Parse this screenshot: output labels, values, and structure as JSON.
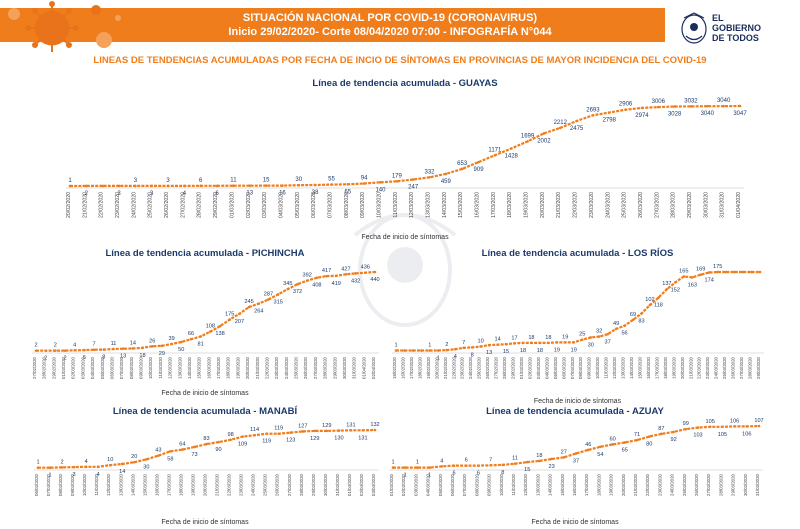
{
  "header": {
    "line1": "SITUACIÓN NACIONAL POR  COVID-19 (CORONAVIRUS)",
    "line2": "Inicio 29/02/2020- Corte 08/04/2020 07:00  - INFOGRAFÍA N°044",
    "logo_line1": "EL",
    "logo_line2": "GOBIERNO",
    "logo_line3": "DE TODOS"
  },
  "subtitle": "LINEAS DE TENDENCIAS ACUMULADAS POR FECHA DE INCIO DE SÍNTOMAS EN PROVINCIAS DE MAYOR INCIDENCIA DEL COVID-19",
  "colors": {
    "line": "#f07d1c",
    "label": "#1b3a6b",
    "accent": "#f07d1c"
  },
  "chart_data": [
    {
      "type": "line",
      "title": "Línea de tendencia acumulada - GUAYAS",
      "xlabel": "Fecha de inicio de síntomas",
      "ylabel": "",
      "x": [
        "20/02/2020",
        "21/02/2020",
        "22/02/2020",
        "23/02/2020",
        "24/02/2020",
        "25/02/2020",
        "26/02/2020",
        "27/02/2020",
        "28/02/2020",
        "29/02/2020",
        "01/03/2020",
        "02/03/2020",
        "03/03/2020",
        "04/03/2020",
        "05/03/2020",
        "06/03/2020",
        "07/03/2020",
        "08/03/2020",
        "09/03/2020",
        "10/03/2020",
        "11/03/2020",
        "12/03/2020",
        "13/03/2020",
        "14/03/2020",
        "15/03/2020",
        "16/03/2020",
        "17/03/2020",
        "18/03/2020",
        "19/03/2020",
        "20/03/2020",
        "21/03/2020",
        "22/03/2020",
        "23/03/2020",
        "24/03/2020",
        "25/03/2020",
        "26/03/2020",
        "27/03/2020",
        "28/03/2020",
        "29/03/2020",
        "30/03/2020",
        "31/03/2020",
        "01/04/2020"
      ],
      "values": [
        1,
        2,
        2,
        3,
        3,
        3,
        3,
        4,
        6,
        6,
        11,
        13,
        15,
        16,
        30,
        38,
        55,
        65,
        94,
        140,
        179,
        247,
        332,
        459,
        653,
        909,
        1171,
        1428,
        1699,
        2002,
        2212,
        2475,
        2693,
        2798,
        2906,
        2974,
        3006,
        3028,
        3032,
        3040,
        3040,
        3047
      ],
      "labels": [
        "1",
        "2",
        "",
        "3",
        "3",
        "3",
        "3",
        "4",
        "6",
        "6",
        "11",
        "13",
        "15",
        "16",
        "30",
        "38",
        "55",
        "65",
        "94",
        "140",
        "179",
        "247",
        "332",
        "459",
        "653",
        "909",
        "1171",
        "1428",
        "1699",
        "2002",
        "2212",
        "2475",
        "2693",
        "2798",
        "2906",
        "2974",
        "3006",
        "3028",
        "3032",
        "3040",
        "3040",
        "3047"
      ],
      "ylim": [
        0,
        3047
      ]
    },
    {
      "type": "line",
      "title": "Línea de tendencia acumulada - PICHINCHA",
      "xlabel": "Fecha de inicio de síntomas",
      "ylabel": "",
      "x": [
        "27/02/2020",
        "28/02/2020",
        "29/02/2020",
        "01/03/2020",
        "02/03/2020",
        "03/03/2020",
        "04/03/2020",
        "05/03/2020",
        "06/03/2020",
        "07/03/2020",
        "08/03/2020",
        "09/03/2020",
        "10/03/2020",
        "11/03/2020",
        "12/03/2020",
        "13/03/2020",
        "14/03/2020",
        "15/03/2020",
        "16/03/2020",
        "17/03/2020",
        "18/03/2020",
        "19/03/2020",
        "20/03/2020",
        "21/03/2020",
        "22/03/2020",
        "23/03/2020",
        "24/03/2020",
        "25/03/2020",
        "26/03/2020",
        "27/03/2020",
        "28/03/2020",
        "29/03/2020",
        "30/03/2020",
        "31/03/2020",
        "01/04/2020",
        "02/04/2020"
      ],
      "values": [
        2,
        2,
        2,
        2,
        4,
        5,
        7,
        8,
        11,
        13,
        14,
        18,
        26,
        29,
        39,
        50,
        66,
        81,
        108,
        138,
        175,
        207,
        245,
        264,
        287,
        315,
        345,
        372,
        392,
        408,
        417,
        419,
        427,
        432,
        436,
        440
      ],
      "ylim": [
        0,
        440
      ]
    },
    {
      "type": "line",
      "title": "Línea de tendencia acumulada - LOS RÍOS",
      "xlabel": "Fecha de inicio de síntomas",
      "ylabel": "",
      "x": [
        "15/02/2020",
        "16/02/2020",
        "17/02/2020",
        "18/02/2020",
        "19/02/2020",
        "20/02/2020",
        "21/02/2020",
        "22/02/2020",
        "23/02/2020",
        "24/02/2020",
        "25/02/2020",
        "26/02/2020",
        "27/02/2020",
        "28/02/2020",
        "29/02/2020",
        "01/03/2020",
        "02/03/2020",
        "03/03/2020",
        "04/03/2020",
        "05/03/2020",
        "06/03/2020",
        "07/03/2020",
        "08/03/2020",
        "09/03/2020",
        "10/03/2020",
        "11/03/2020",
        "12/03/2020",
        "13/03/2020",
        "14/03/2020",
        "15/03/2020",
        "16/03/2020",
        "17/03/2020",
        "18/03/2020",
        "19/03/2020",
        "20/03/2020",
        "21/03/2020",
        "22/03/2020",
        "23/03/2020",
        "24/03/2020",
        "25/03/2020",
        "26/03/2020",
        "27/03/2020",
        "28/03/2020",
        "29/03/2020"
      ],
      "values": [
        1,
        1,
        1,
        1,
        1,
        1,
        2,
        4,
        7,
        8,
        10,
        13,
        14,
        15,
        17,
        18,
        18,
        18,
        18,
        19,
        19,
        19,
        25,
        30,
        32,
        37,
        49,
        56,
        69,
        83,
        102,
        118,
        137,
        152,
        165,
        163,
        169,
        174,
        175,
        175,
        175,
        175,
        175,
        175
      ],
      "labels": [
        "1",
        "",
        "",
        "",
        "1",
        "1",
        "2",
        "4",
        "7",
        "8",
        "10",
        "13",
        "14",
        "15",
        "17",
        "18",
        "18",
        "18",
        "18",
        "19",
        "19",
        "19",
        "25",
        "30",
        "32",
        "37",
        "49",
        "56",
        "69",
        "83",
        "102",
        "118",
        "137",
        "152",
        "165",
        "163",
        "169",
        "174",
        "175",
        "",
        "",
        "",
        "",
        ""
      ],
      "ylim": [
        0,
        175
      ]
    },
    {
      "type": "line",
      "title": "Línea de tendencia acumulada - MANABÍ",
      "xlabel": "Fecha de inicio de síntomas",
      "ylabel": "",
      "x": [
        "06/03/2020",
        "07/03/2020",
        "08/03/2020",
        "09/03/2020",
        "10/03/2020",
        "11/03/2020",
        "12/03/2020",
        "13/03/2020",
        "14/03/2020",
        "15/03/2020",
        "16/03/2020",
        "17/03/2020",
        "18/03/2020",
        "19/03/2020",
        "20/03/2020",
        "21/03/2020",
        "22/03/2020",
        "23/03/2020",
        "24/03/2020",
        "25/03/2020",
        "26/03/2020",
        "27/03/2020",
        "28/03/2020",
        "29/03/2020",
        "30/03/2020",
        "31/03/2020",
        "01/04/2020",
        "02/04/2020",
        "03/04/2020"
      ],
      "values": [
        1,
        1,
        2,
        3,
        4,
        4,
        10,
        14,
        20,
        30,
        43,
        58,
        64,
        73,
        83,
        90,
        98,
        109,
        114,
        119,
        119,
        123,
        127,
        129,
        129,
        130,
        131,
        131,
        132
      ],
      "ylim": [
        0,
        132
      ]
    },
    {
      "type": "line",
      "title": "Línea de tendencia acumulada - AZUAY",
      "xlabel": "Fecha de inicio de síntomas",
      "ylabel": "",
      "x": [
        "01/03/2020",
        "02/03/2020",
        "03/03/2020",
        "04/03/2020",
        "05/03/2020",
        "06/03/2020",
        "07/03/2020",
        "08/03/2020",
        "09/03/2020",
        "10/03/2020",
        "11/03/2020",
        "12/03/2020",
        "13/03/2020",
        "14/03/2020",
        "15/03/2020",
        "16/03/2020",
        "17/03/2020",
        "18/03/2020",
        "19/03/2020",
        "20/03/2020",
        "21/03/2020",
        "22/03/2020",
        "23/03/2020",
        "24/03/2020",
        "25/03/2020",
        "26/03/2020",
        "27/03/2020",
        "28/03/2020",
        "29/03/2020",
        "30/03/2020",
        "31/03/2020"
      ],
      "values": [
        1,
        1,
        1,
        1,
        4,
        6,
        6,
        6,
        7,
        8,
        11,
        15,
        18,
        23,
        27,
        37,
        46,
        54,
        60,
        65,
        71,
        80,
        87,
        92,
        99,
        103,
        105,
        105,
        106,
        106,
        107
      ],
      "ylim": [
        0,
        107
      ]
    }
  ]
}
